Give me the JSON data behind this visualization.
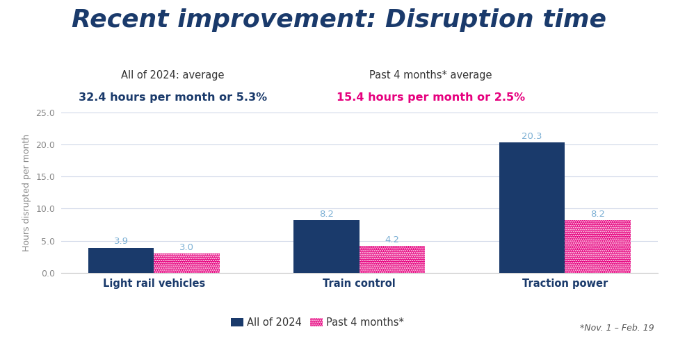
{
  "title": "Recent improvement: Disruption time",
  "title_color": "#1a3a6b",
  "title_fontsize": 26,
  "subtitle_left_line1": "All of 2024: average",
  "subtitle_left_line2": "32.4 hours per month or 5.3%",
  "subtitle_right_line1": "Past 4 months* average",
  "subtitle_right_line2": "15.4 hours per month or 2.5%",
  "subtitle_color_dark": "#333333",
  "subtitle_color_blue": "#1a3a6b",
  "subtitle_color_pink": "#e6007e",
  "categories": [
    "Light rail vehicles",
    "Train control",
    "Traction power"
  ],
  "values_2024": [
    3.9,
    8.2,
    20.3
  ],
  "values_past4": [
    3.0,
    4.2,
    8.2
  ],
  "bar_color_2024": "#1a3a6b",
  "bar_color_past4": "#e6007e",
  "ylabel": "Hours disrupted per month",
  "ylim": [
    0,
    25
  ],
  "yticks": [
    0.0,
    5.0,
    10.0,
    15.0,
    20.0,
    25.0
  ],
  "legend_label_2024": "All of 2024",
  "legend_label_past4": "Past 4 months*",
  "footnote": "*Nov. 1 – Feb. 19",
  "bar_width": 0.32,
  "background_color": "#ffffff"
}
